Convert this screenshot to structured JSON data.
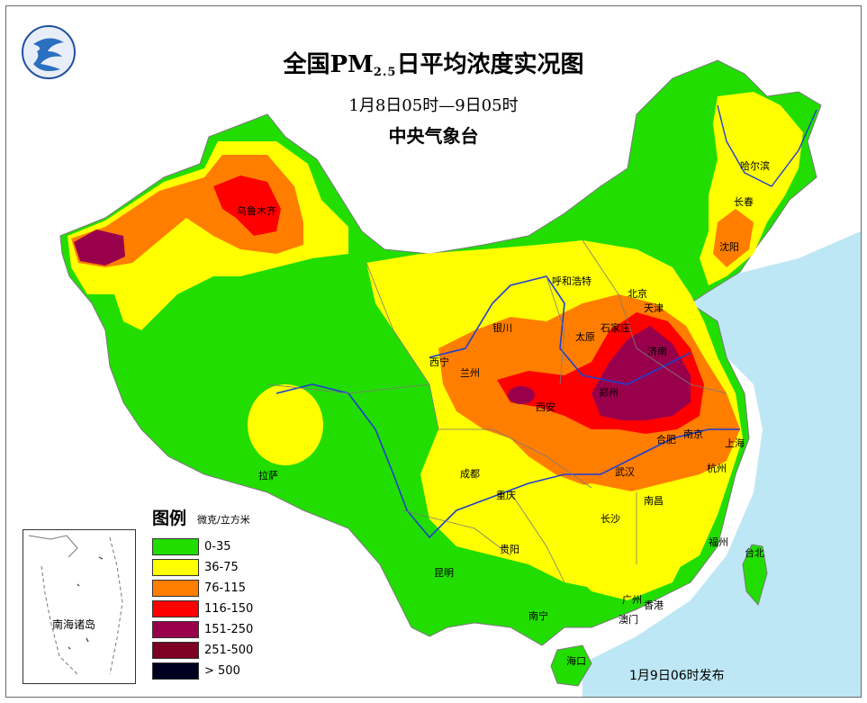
{
  "title": {
    "main_prefix": "全国PM",
    "main_sub": "2.5",
    "main_suffix": "日平均浓度实况图",
    "time_range": "1月8日05时—9日05时",
    "organization": "中央气象台"
  },
  "legend": {
    "title": "图例",
    "unit": "微克/立方米",
    "items": [
      {
        "label": "0-35",
        "color": "#22dd00"
      },
      {
        "label": "36-75",
        "color": "#ffff00"
      },
      {
        "label": "76-115",
        "color": "#ff7e00"
      },
      {
        "label": "116-150",
        "color": "#ff0000"
      },
      {
        "label": "151-250",
        "color": "#99004c"
      },
      {
        "label": "251-500",
        "color": "#7e0023"
      },
      {
        "label": "> 500",
        "color": "#000020"
      }
    ]
  },
  "inset": {
    "label": "南海诸岛"
  },
  "publish": "1月9日06时发布",
  "cities": [
    {
      "name": "哈尔滨"
    },
    {
      "name": "长春"
    },
    {
      "name": "沈阳"
    },
    {
      "name": "乌鲁木齐"
    },
    {
      "name": "呼和浩特"
    },
    {
      "name": "北京"
    },
    {
      "name": "天津"
    },
    {
      "name": "石家庄"
    },
    {
      "name": "银川"
    },
    {
      "name": "太原"
    },
    {
      "name": "济南"
    },
    {
      "name": "西宁"
    },
    {
      "name": "兰州"
    },
    {
      "name": "郑州"
    },
    {
      "name": "西安"
    },
    {
      "name": "合肥"
    },
    {
      "name": "南京"
    },
    {
      "name": "上海"
    },
    {
      "name": "拉萨"
    },
    {
      "name": "成都"
    },
    {
      "name": "武汉"
    },
    {
      "name": "杭州"
    },
    {
      "name": "重庆"
    },
    {
      "name": "南昌"
    },
    {
      "name": "长沙"
    },
    {
      "name": "贵阳"
    },
    {
      "name": "福州"
    },
    {
      "name": "台北"
    },
    {
      "name": "昆明"
    },
    {
      "name": "南宁"
    },
    {
      "name": "广州"
    },
    {
      "name": "香港"
    },
    {
      "name": "澳门"
    },
    {
      "name": "海口"
    }
  ]
}
